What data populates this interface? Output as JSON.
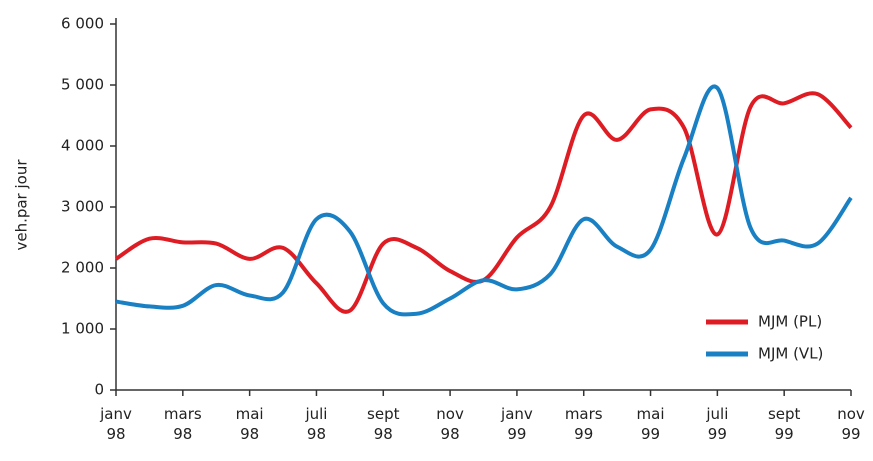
{
  "chart_data": {
    "type": "line",
    "ylabel": "veh.par jour",
    "categories": [
      "janv 98",
      null,
      "mars 98",
      null,
      "mai 98",
      null,
      "juli 98",
      null,
      "sept 98",
      null,
      "nov 98",
      null,
      "janv 99",
      null,
      "mars 99",
      null,
      "mai 99",
      null,
      "juli 99",
      null,
      "sept 99",
      null,
      "nov 99"
    ],
    "series": [
      {
        "name": "MJM (PL)",
        "color": "#de1c24",
        "values": [
          2150,
          2480,
          2420,
          2400,
          2150,
          2330,
          1750,
          1300,
          2400,
          2330,
          1950,
          1800,
          2500,
          3000,
          4500,
          4100,
          4600,
          4300,
          2550,
          4650,
          4700,
          4850,
          4300
        ]
      },
      {
        "name": "MJM (VL)",
        "color": "#1a80c4",
        "values": [
          1450,
          1370,
          1380,
          1720,
          1550,
          1600,
          2800,
          2600,
          1420,
          1250,
          1500,
          1800,
          1650,
          1900,
          2800,
          2350,
          2300,
          3800,
          4950,
          2650,
          2450,
          2400,
          3150
        ]
      }
    ],
    "ylim": [
      0,
      6000
    ],
    "yticks": [
      0,
      {
        "value": 1000,
        "label": "1 000"
      },
      {
        "value": 2000,
        "label": "2 000"
      },
      {
        "value": 3000,
        "label": "3 000"
      },
      {
        "value": 4000,
        "label": "4 000"
      },
      {
        "value": 5000,
        "label": "5 000"
      },
      {
        "value": 6000,
        "label": "6 000"
      }
    ],
    "legend": "lower right"
  }
}
